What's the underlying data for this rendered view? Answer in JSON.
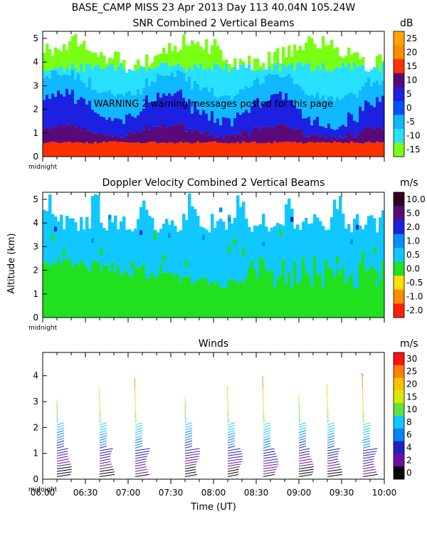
{
  "header": {
    "line1": "BASE_CAMP MISS   23 Apr 2013 Day 113 40.04N 105.24W"
  },
  "warning": "WARNING   2 warning messages posted for this page",
  "ylabel": "Altitude (km)",
  "xlabel": "Time (UT)",
  "midnight_label": "midnight",
  "chart_data": [
    {
      "type": "heatmap",
      "title": "SNR Combined 2 Vertical Beams",
      "unit": "dB",
      "ylim": [
        0,
        5.3
      ],
      "yticks": [
        "0",
        "1",
        "2",
        "3",
        "4",
        "5"
      ],
      "colorbar": {
        "labels": [
          "25",
          "20",
          "15",
          "10",
          "5",
          "0",
          "-5",
          "-10",
          "-15"
        ],
        "colors": [
          "#ffa500",
          "#ff8c00",
          "#ff3000",
          "#5a0a78",
          "#1c20e0",
          "#0050ff",
          "#10b8ff",
          "#28e0ff",
          "#78ff14"
        ]
      },
      "description_levels": [
        {
          "alt": 0.3,
          "color": "#ff3000"
        },
        {
          "alt": 0.9,
          "color": "#5a0a78"
        },
        {
          "alt": 1.5,
          "color": "#1c20e0"
        },
        {
          "alt": 2.5,
          "color": "#10b8ff"
        },
        {
          "alt": 3.5,
          "color": "#28e0ff"
        },
        {
          "alt": 4.5,
          "color": "#78ff14"
        }
      ]
    },
    {
      "type": "heatmap",
      "title": "Doppler Velocity Combined 2 Vertical Beams",
      "unit": "m/s",
      "ylim": [
        0,
        5.3
      ],
      "yticks": [
        "0",
        "1",
        "2",
        "3",
        "4",
        "5"
      ],
      "colorbar": {
        "labels": [
          "10.0",
          "5.0",
          "2.0",
          "1.0",
          "0.5",
          "0.0",
          "-0.5",
          "-1.0",
          "-2.0"
        ],
        "colors": [
          "#300020",
          "#5a0a78",
          "#1c20e0",
          "#0090ff",
          "#10c8ff",
          "#20e020",
          "#ffe000",
          "#ff8c00",
          "#ff2000"
        ]
      }
    },
    {
      "type": "wind-barbs",
      "title": "Winds",
      "unit": "m/s",
      "ylim": [
        0,
        4.9
      ],
      "yticks": [
        "0",
        "1",
        "2",
        "3",
        "4"
      ],
      "xticks": [
        "06:00",
        "06:30",
        "07:00",
        "07:30",
        "08:00",
        "08:30",
        "09:00",
        "09:30",
        "10:00"
      ],
      "colorbar": {
        "labels": [
          "30",
          "25",
          "20",
          "15",
          "10",
          "8",
          "6",
          "4",
          "2",
          "0"
        ],
        "colors": [
          "#ff1010",
          "#ff8000",
          "#ffc000",
          "#d8e800",
          "#60e040",
          "#10c8ff",
          "#0080ff",
          "#2020c0",
          "#6a10a0",
          "#000000"
        ]
      },
      "profile_times": [
        "06:10",
        "06:40",
        "07:05",
        "07:40",
        "08:10",
        "08:35",
        "09:00",
        "09:20",
        "09:45"
      ]
    }
  ]
}
